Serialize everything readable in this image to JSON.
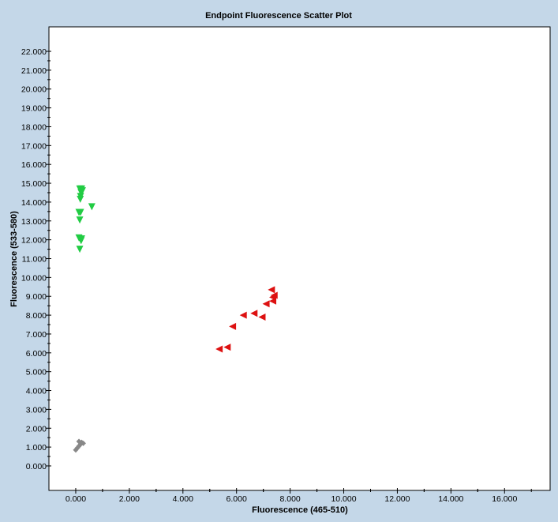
{
  "chart_data": {
    "type": "scatter",
    "title": "Endpoint Fluorescence Scatter Plot",
    "xlabel": "Fluorescence (465-510)",
    "ylabel": "Fluorescence (533-580)",
    "xlim": [
      -1.0,
      17.7
    ],
    "ylim": [
      -1.3,
      23.3
    ],
    "xticks": [
      "0.000",
      "2.000",
      "4.000",
      "6.000",
      "8.000",
      "10.000",
      "12.000",
      "14.000",
      "16.000"
    ],
    "yticks": [
      "0.000",
      "1.000",
      "2.000",
      "3.000",
      "4.000",
      "5.000",
      "6.000",
      "7.000",
      "8.000",
      "9.000",
      "10.000",
      "11.000",
      "12.000",
      "13.000",
      "14.000",
      "15.000",
      "16.000",
      "17.000",
      "18.000",
      "19.000",
      "20.000",
      "21.000",
      "22.000"
    ],
    "grid": false,
    "series": [
      {
        "marker": "triangle-down",
        "color": "#22cc44",
        "points": [
          [
            0.15,
            14.7
          ],
          [
            0.22,
            14.7
          ],
          [
            0.25,
            14.6
          ],
          [
            0.2,
            14.5
          ],
          [
            0.18,
            14.3
          ],
          [
            0.17,
            14.15
          ],
          [
            0.6,
            13.75
          ],
          [
            0.12,
            13.45
          ],
          [
            0.18,
            13.45
          ],
          [
            0.15,
            13.05
          ],
          [
            0.12,
            12.1
          ],
          [
            0.18,
            12.05
          ],
          [
            0.22,
            12.05
          ],
          [
            0.2,
            11.95
          ],
          [
            0.15,
            11.5
          ]
        ]
      },
      {
        "marker": "triangle-left",
        "color": "#dd1111",
        "points": [
          [
            5.35,
            6.2
          ],
          [
            5.65,
            6.3
          ],
          [
            5.85,
            7.4
          ],
          [
            6.25,
            8.0
          ],
          [
            6.65,
            8.1
          ],
          [
            6.95,
            7.9
          ],
          [
            7.1,
            8.6
          ],
          [
            7.35,
            8.75
          ],
          [
            7.35,
            8.95
          ],
          [
            7.3,
            9.35
          ],
          [
            7.4,
            9.05
          ]
        ]
      },
      {
        "marker": "diamond",
        "color": "#888888",
        "points": [
          [
            0.0,
            0.85
          ],
          [
            0.06,
            0.95
          ],
          [
            0.12,
            1.05
          ],
          [
            0.18,
            1.15
          ],
          [
            0.12,
            1.3
          ],
          [
            0.22,
            1.25
          ],
          [
            0.28,
            1.2
          ]
        ]
      }
    ]
  }
}
